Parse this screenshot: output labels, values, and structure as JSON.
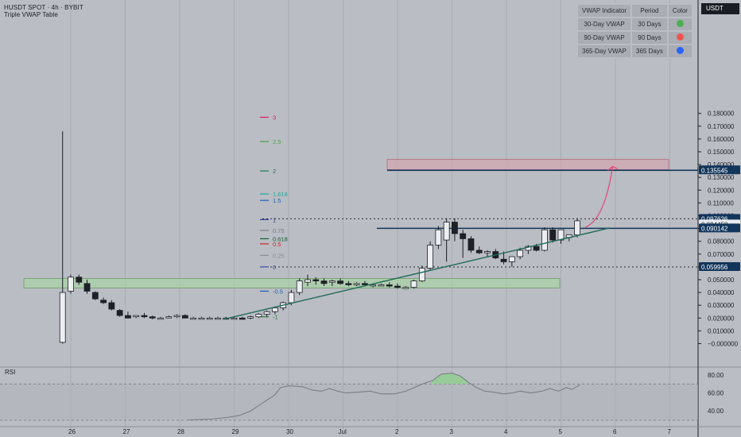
{
  "header": {
    "title": "HUSDT SPOT · 4h · BYBIT",
    "subtitle": "Triple VWAP Table"
  },
  "unit_badge": "USDT",
  "vwap_table": {
    "columns": [
      "VWAP Indicator",
      "Period",
      "Color"
    ],
    "rows": [
      {
        "indicator": "30-Day VWAP",
        "period": "30 Days",
        "color": "#4caf50"
      },
      {
        "indicator": "90-Day VWAP",
        "period": "90 Days",
        "color": "#ef5350"
      },
      {
        "indicator": "365-Day VWAP",
        "period": "365 Days",
        "color": "#2962ff"
      }
    ]
  },
  "colors": {
    "background": "#babdc3",
    "candle_up": "#eceef1",
    "candle_down": "#1d2027",
    "trendline": "#1f6b5a",
    "level_line": "#12355b",
    "zone_support": "#a6d5a0",
    "zone_resistance": "#d9a2ae",
    "arrow": "#e0457b",
    "rsi_line": "#7b7e85",
    "rsi_overbought_fill": "#8fd08f"
  },
  "chart_data": {
    "type": "candlestick",
    "symbol": "HUSDT",
    "interval": "4h",
    "exchange": "BYBIT",
    "y_axis_ticks": [
      "0.180000",
      "0.170000",
      "0.160000",
      "0.150000",
      "0.140000",
      "0.130000",
      "0.120000",
      "0.110000",
      "0.100000",
      "0.090000",
      "0.080000",
      "0.070000",
      "0.060000",
      "0.050000",
      "0.040000",
      "0.030000",
      "0.020000",
      "0.010000",
      "−0.000000"
    ],
    "ylim": [
      -0.005,
      0.185
    ],
    "x_axis_ticks": [
      "26",
      "27",
      "28",
      "29",
      "30",
      "Jul",
      "2",
      "3",
      "4",
      "5",
      "6",
      "7"
    ],
    "price_labels": [
      {
        "text": "0.135545",
        "value": 0.135545,
        "style": "dark"
      },
      {
        "text": "0.097626",
        "value": 0.097626,
        "style": "dark"
      },
      {
        "text": "0.094458",
        "value": 0.094458,
        "style": "plain"
      },
      {
        "text": "0.090142",
        "value": 0.090142,
        "style": "dark"
      },
      {
        "text": "0.059956",
        "value": 0.059956,
        "style": "dark"
      }
    ],
    "horizontal_lines": [
      {
        "value": 0.135545,
        "style": "solid"
      },
      {
        "value": 0.090142,
        "style": "solid"
      },
      {
        "value": 0.097626,
        "style": "dotted"
      },
      {
        "value": 0.059956,
        "style": "dotted"
      }
    ],
    "zones": [
      {
        "kind": "resistance",
        "top": 0.144,
        "bottom": 0.136
      },
      {
        "kind": "support",
        "top": 0.051,
        "bottom": 0.0435
      }
    ],
    "fib_levels": [
      {
        "label": "3",
        "value": 0.177,
        "color": "#d81b60"
      },
      {
        "label": "2.5",
        "value": 0.158,
        "color": "#43a047"
      },
      {
        "label": "2",
        "value": 0.135,
        "color": "#1b7a52"
      },
      {
        "label": "1.618",
        "value": 0.117,
        "color": "#26a69a"
      },
      {
        "label": "1.5",
        "value": 0.112,
        "color": "#1e5fb3"
      },
      {
        "label": "1",
        "value": 0.097,
        "color": "#2a3a8c"
      },
      {
        "label": "0.75",
        "value": 0.0885,
        "color": "#7a7d84"
      },
      {
        "label": "0.618",
        "value": 0.082,
        "color": "#1b5e3c"
      },
      {
        "label": "0.5",
        "value": 0.078,
        "color": "#c62828"
      },
      {
        "label": "0.25",
        "value": 0.069,
        "color": "#8a8d94"
      },
      {
        "label": "0",
        "value": 0.06,
        "color": "#3949ab"
      },
      {
        "label": "-0.5",
        "value": 0.041,
        "color": "#1e5fb3"
      },
      {
        "label": "-1",
        "value": 0.021,
        "color": "#2e7d32"
      }
    ],
    "candles": [
      {
        "x": 25.85,
        "o": 0.001,
        "h": 0.166,
        "l": 0.0,
        "c": 0.04
      },
      {
        "x": 26.0,
        "o": 0.041,
        "h": 0.054,
        "l": 0.039,
        "c": 0.052
      },
      {
        "x": 26.15,
        "o": 0.052,
        "h": 0.054,
        "l": 0.046,
        "c": 0.048
      },
      {
        "x": 26.3,
        "o": 0.047,
        "h": 0.05,
        "l": 0.039,
        "c": 0.041
      },
      {
        "x": 26.45,
        "o": 0.04,
        "h": 0.041,
        "l": 0.034,
        "c": 0.035
      },
      {
        "x": 26.6,
        "o": 0.034,
        "h": 0.036,
        "l": 0.031,
        "c": 0.032
      },
      {
        "x": 26.75,
        "o": 0.032,
        "h": 0.034,
        "l": 0.026,
        "c": 0.027
      },
      {
        "x": 26.9,
        "o": 0.026,
        "h": 0.027,
        "l": 0.021,
        "c": 0.022
      },
      {
        "x": 27.05,
        "o": 0.022,
        "h": 0.025,
        "l": 0.02,
        "c": 0.02
      },
      {
        "x": 27.2,
        "o": 0.021,
        "h": 0.022,
        "l": 0.02,
        "c": 0.022
      },
      {
        "x": 27.35,
        "o": 0.022,
        "h": 0.024,
        "l": 0.02,
        "c": 0.021
      },
      {
        "x": 27.5,
        "o": 0.021,
        "h": 0.022,
        "l": 0.019,
        "c": 0.02
      },
      {
        "x": 27.65,
        "o": 0.02,
        "h": 0.021,
        "l": 0.019,
        "c": 0.02
      },
      {
        "x": 27.8,
        "o": 0.021,
        "h": 0.022,
        "l": 0.02,
        "c": 0.021
      },
      {
        "x": 27.95,
        "o": 0.021,
        "h": 0.023,
        "l": 0.02,
        "c": 0.022
      },
      {
        "x": 28.1,
        "o": 0.022,
        "h": 0.023,
        "l": 0.02,
        "c": 0.02
      },
      {
        "x": 28.25,
        "o": 0.02,
        "h": 0.021,
        "l": 0.019,
        "c": 0.02
      },
      {
        "x": 28.4,
        "o": 0.02,
        "h": 0.021,
        "l": 0.019,
        "c": 0.02
      },
      {
        "x": 28.55,
        "o": 0.02,
        "h": 0.021,
        "l": 0.019,
        "c": 0.02
      },
      {
        "x": 28.7,
        "o": 0.02,
        "h": 0.021,
        "l": 0.019,
        "c": 0.02
      },
      {
        "x": 28.85,
        "o": 0.02,
        "h": 0.021,
        "l": 0.019,
        "c": 0.02
      },
      {
        "x": 29.0,
        "o": 0.02,
        "h": 0.021,
        "l": 0.019,
        "c": 0.02
      },
      {
        "x": 29.15,
        "o": 0.02,
        "h": 0.021,
        "l": 0.019,
        "c": 0.019
      },
      {
        "x": 29.3,
        "o": 0.02,
        "h": 0.022,
        "l": 0.019,
        "c": 0.021
      },
      {
        "x": 29.45,
        "o": 0.021,
        "h": 0.024,
        "l": 0.02,
        "c": 0.023
      },
      {
        "x": 29.6,
        "o": 0.023,
        "h": 0.026,
        "l": 0.021,
        "c": 0.025
      },
      {
        "x": 29.75,
        "o": 0.025,
        "h": 0.029,
        "l": 0.023,
        "c": 0.028
      },
      {
        "x": 29.9,
        "o": 0.028,
        "h": 0.033,
        "l": 0.026,
        "c": 0.032
      },
      {
        "x": 30.05,
        "o": 0.032,
        "h": 0.042,
        "l": 0.03,
        "c": 0.04
      },
      {
        "x": 30.2,
        "o": 0.04,
        "h": 0.051,
        "l": 0.038,
        "c": 0.049
      },
      {
        "x": 30.35,
        "o": 0.048,
        "h": 0.054,
        "l": 0.045,
        "c": 0.05
      },
      {
        "x": 30.5,
        "o": 0.05,
        "h": 0.052,
        "l": 0.046,
        "c": 0.049
      },
      {
        "x": 30.65,
        "o": 0.049,
        "h": 0.051,
        "l": 0.045,
        "c": 0.047
      },
      {
        "x": 30.8,
        "o": 0.048,
        "h": 0.05,
        "l": 0.045,
        "c": 0.049
      },
      {
        "x": 30.95,
        "o": 0.049,
        "h": 0.051,
        "l": 0.046,
        "c": 0.047
      },
      {
        "x": 31.1,
        "o": 0.047,
        "h": 0.049,
        "l": 0.045,
        "c": 0.046
      },
      {
        "x": 31.25,
        "o": 0.046,
        "h": 0.048,
        "l": 0.045,
        "c": 0.047
      },
      {
        "x": 31.4,
        "o": 0.047,
        "h": 0.049,
        "l": 0.045,
        "c": 0.046
      },
      {
        "x": 31.55,
        "o": 0.046,
        "h": 0.047,
        "l": 0.044,
        "c": 0.046
      },
      {
        "x": 31.7,
        "o": 0.046,
        "h": 0.047,
        "l": 0.045,
        "c": 0.046
      },
      {
        "x": 31.85,
        "o": 0.046,
        "h": 0.048,
        "l": 0.044,
        "c": 0.045
      },
      {
        "x": 32.0,
        "o": 0.045,
        "h": 0.047,
        "l": 0.043,
        "c": 0.044
      },
      {
        "x": 32.15,
        "o": 0.044,
        "h": 0.045,
        "l": 0.043,
        "c": 0.044
      },
      {
        "x": 32.3,
        "o": 0.044,
        "h": 0.05,
        "l": 0.043,
        "c": 0.049
      },
      {
        "x": 32.45,
        "o": 0.049,
        "h": 0.061,
        "l": 0.048,
        "c": 0.059
      },
      {
        "x": 32.6,
        "o": 0.059,
        "h": 0.08,
        "l": 0.057,
        "c": 0.077
      },
      {
        "x": 32.75,
        "o": 0.077,
        "h": 0.092,
        "l": 0.074,
        "c": 0.089
      },
      {
        "x": 32.9,
        "o": 0.081,
        "h": 0.098,
        "l": 0.064,
        "c": 0.095
      },
      {
        "x": 33.05,
        "o": 0.095,
        "h": 0.098,
        "l": 0.08,
        "c": 0.086
      },
      {
        "x": 33.2,
        "o": 0.086,
        "h": 0.089,
        "l": 0.067,
        "c": 0.082
      },
      {
        "x": 33.35,
        "o": 0.082,
        "h": 0.084,
        "l": 0.071,
        "c": 0.073
      },
      {
        "x": 33.5,
        "o": 0.073,
        "h": 0.076,
        "l": 0.07,
        "c": 0.071
      },
      {
        "x": 33.65,
        "o": 0.071,
        "h": 0.073,
        "l": 0.068,
        "c": 0.072
      },
      {
        "x": 33.8,
        "o": 0.072,
        "h": 0.074,
        "l": 0.066,
        "c": 0.067
      },
      {
        "x": 33.95,
        "o": 0.066,
        "h": 0.072,
        "l": 0.062,
        "c": 0.064
      },
      {
        "x": 34.1,
        "o": 0.064,
        "h": 0.068,
        "l": 0.06,
        "c": 0.068
      },
      {
        "x": 34.25,
        "o": 0.068,
        "h": 0.075,
        "l": 0.066,
        "c": 0.073
      },
      {
        "x": 34.4,
        "o": 0.073,
        "h": 0.077,
        "l": 0.07,
        "c": 0.076
      },
      {
        "x": 34.55,
        "o": 0.076,
        "h": 0.078,
        "l": 0.072,
        "c": 0.073
      },
      {
        "x": 34.7,
        "o": 0.073,
        "h": 0.091,
        "l": 0.072,
        "c": 0.089
      },
      {
        "x": 34.85,
        "o": 0.089,
        "h": 0.091,
        "l": 0.079,
        "c": 0.081
      },
      {
        "x": 35.0,
        "o": 0.081,
        "h": 0.089,
        "l": 0.078,
        "c": 0.089
      },
      {
        "x": 35.15,
        "o": 0.083,
        "h": 0.085,
        "l": 0.08,
        "c": 0.085
      },
      {
        "x": 35.3,
        "o": 0.085,
        "h": 0.098,
        "l": 0.083,
        "c": 0.096
      }
    ],
    "trendline": {
      "from": {
        "x": 28.8,
        "y": 0.019
      },
      "to": {
        "x": 35.9,
        "y": 0.0905
      }
    },
    "arrow": {
      "from": {
        "x": 35.45,
        "y": 0.091
      },
      "to": {
        "x": 35.95,
        "y": 0.1385
      }
    },
    "rsi": {
      "label": "RSI",
      "ticks": [
        "80.00",
        "60.00",
        "40.00"
      ],
      "ylim": [
        30,
        90
      ],
      "upper_band": 70,
      "lower_band": 30,
      "points": [
        {
          "x": 28.15,
          "y": 30
        },
        {
          "x": 28.6,
          "y": 31
        },
        {
          "x": 28.9,
          "y": 33
        },
        {
          "x": 29.1,
          "y": 35
        },
        {
          "x": 29.3,
          "y": 40
        },
        {
          "x": 29.45,
          "y": 46
        },
        {
          "x": 29.6,
          "y": 52
        },
        {
          "x": 29.75,
          "y": 58
        },
        {
          "x": 29.85,
          "y": 66
        },
        {
          "x": 30.0,
          "y": 68
        },
        {
          "x": 30.25,
          "y": 67
        },
        {
          "x": 30.45,
          "y": 63
        },
        {
          "x": 30.6,
          "y": 62
        },
        {
          "x": 30.75,
          "y": 65
        },
        {
          "x": 30.9,
          "y": 62
        },
        {
          "x": 31.05,
          "y": 60
        },
        {
          "x": 31.3,
          "y": 61
        },
        {
          "x": 31.5,
          "y": 62
        },
        {
          "x": 31.7,
          "y": 59
        },
        {
          "x": 31.95,
          "y": 59
        },
        {
          "x": 32.15,
          "y": 62
        },
        {
          "x": 32.3,
          "y": 66
        },
        {
          "x": 32.5,
          "y": 71
        },
        {
          "x": 32.65,
          "y": 74
        },
        {
          "x": 32.8,
          "y": 81
        },
        {
          "x": 33.0,
          "y": 82
        },
        {
          "x": 33.15,
          "y": 79
        },
        {
          "x": 33.3,
          "y": 72
        },
        {
          "x": 33.45,
          "y": 66
        },
        {
          "x": 33.6,
          "y": 62
        },
        {
          "x": 33.75,
          "y": 61
        },
        {
          "x": 33.95,
          "y": 59
        },
        {
          "x": 34.1,
          "y": 60
        },
        {
          "x": 34.25,
          "y": 62
        },
        {
          "x": 34.45,
          "y": 60
        },
        {
          "x": 34.65,
          "y": 62
        },
        {
          "x": 34.8,
          "y": 65
        },
        {
          "x": 34.95,
          "y": 62
        },
        {
          "x": 35.1,
          "y": 66
        },
        {
          "x": 35.2,
          "y": 64
        },
        {
          "x": 35.35,
          "y": 69
        }
      ]
    }
  }
}
